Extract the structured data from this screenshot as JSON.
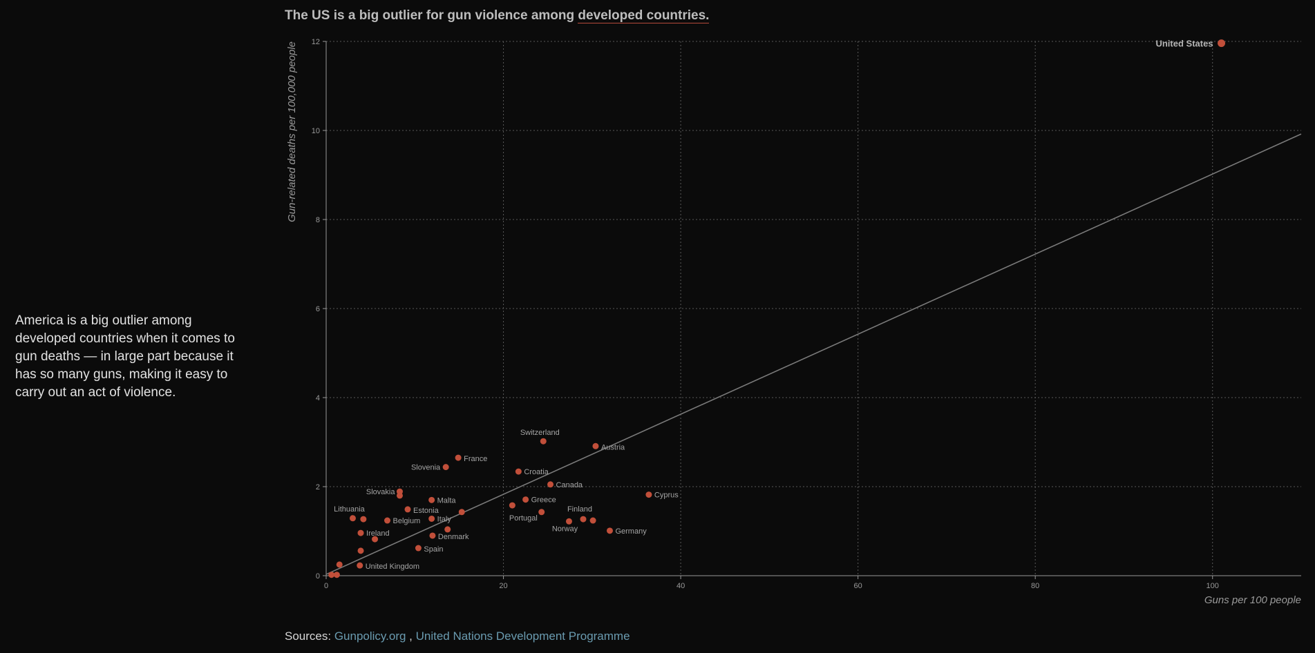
{
  "sidebar": {
    "text": "America is a big outlier among developed countries when it comes to gun deaths — in large part because it has so many guns, making it easy to carry out an act of violence."
  },
  "title": {
    "prefix": "The US is a big outlier for gun violence among ",
    "link": "developed countries."
  },
  "sources": {
    "label": "Sources: ",
    "link1": "Gunpolicy.org",
    "separator": " , ",
    "link2": "United Nations Development Programme"
  },
  "colors": {
    "background": "#0b0b0b",
    "point": "#c14f3a",
    "link": "#6a9bb0"
  },
  "chart_data": {
    "type": "scatter",
    "xlabel": "Guns per 100 people",
    "ylabel": "Gun-related deaths per 100,000 people",
    "xlim": [
      0,
      110
    ],
    "ylim": [
      0,
      12
    ],
    "xticks": [
      0,
      20,
      40,
      60,
      80,
      100
    ],
    "yticks": [
      0,
      2,
      4,
      6,
      8,
      10,
      12
    ],
    "grid": true,
    "trend_line": {
      "x": [
        0,
        110
      ],
      "y": [
        0.03,
        9.92
      ]
    },
    "points": [
      {
        "name": "United States",
        "x": 101,
        "y": 11.96,
        "label": "United States"
      },
      {
        "name": "Switzerland",
        "x": 24.5,
        "y": 3.02,
        "label": "Switzerland"
      },
      {
        "name": "Austria",
        "x": 30.4,
        "y": 2.91,
        "label": "Austria"
      },
      {
        "name": "France",
        "x": 14.9,
        "y": 2.65,
        "label": "France"
      },
      {
        "name": "Slovenia",
        "x": 13.5,
        "y": 2.44,
        "label": "Slovenia"
      },
      {
        "name": "Croatia",
        "x": 21.7,
        "y": 2.34,
        "label": "Croatia"
      },
      {
        "name": "Canada",
        "x": 25.3,
        "y": 2.05,
        "label": "Canada"
      },
      {
        "name": "Cyprus",
        "x": 36.4,
        "y": 1.82,
        "label": "Cyprus"
      },
      {
        "name": "Slovakia",
        "x": 8.3,
        "y": 1.89,
        "label": "Slovakia"
      },
      {
        "name": "",
        "x": 8.3,
        "y": 1.8,
        "label": ""
      },
      {
        "name": "Malta",
        "x": 11.9,
        "y": 1.7,
        "label": "Malta"
      },
      {
        "name": "Greece",
        "x": 22.5,
        "y": 1.71,
        "label": "Greece"
      },
      {
        "name": "Portugal",
        "x": 21.0,
        "y": 1.58,
        "label": "Portugal"
      },
      {
        "name": "Estonia",
        "x": 9.2,
        "y": 1.49,
        "label": "Estonia"
      },
      {
        "name": "",
        "x": 15.3,
        "y": 1.43,
        "label": ""
      },
      {
        "name": "",
        "x": 24.3,
        "y": 1.43,
        "label": ""
      },
      {
        "name": "Lithuania",
        "x": 3.0,
        "y": 1.29,
        "label": "Lithuania"
      },
      {
        "name": "",
        "x": 4.2,
        "y": 1.27,
        "label": ""
      },
      {
        "name": "Belgium",
        "x": 6.9,
        "y": 1.24,
        "label": "Belgium"
      },
      {
        "name": "Italy",
        "x": 11.9,
        "y": 1.28,
        "label": "Italy"
      },
      {
        "name": "Finland",
        "x": 29.0,
        "y": 1.27,
        "label": "Finland"
      },
      {
        "name": "",
        "x": 30.1,
        "y": 1.24,
        "label": ""
      },
      {
        "name": "Norway",
        "x": 27.4,
        "y": 1.22,
        "label": "Norway"
      },
      {
        "name": "",
        "x": 13.7,
        "y": 1.04,
        "label": ""
      },
      {
        "name": "Germany",
        "x": 32.0,
        "y": 1.01,
        "label": "Germany"
      },
      {
        "name": "Ireland",
        "x": 3.9,
        "y": 0.96,
        "label": "Ireland"
      },
      {
        "name": "Denmark",
        "x": 12.0,
        "y": 0.9,
        "label": "Denmark"
      },
      {
        "name": "",
        "x": 5.5,
        "y": 0.82,
        "label": ""
      },
      {
        "name": "Spain",
        "x": 10.4,
        "y": 0.62,
        "label": "Spain"
      },
      {
        "name": "",
        "x": 3.9,
        "y": 0.56,
        "label": ""
      },
      {
        "name": "",
        "x": 1.5,
        "y": 0.25,
        "label": ""
      },
      {
        "name": "United Kingdom",
        "x": 3.8,
        "y": 0.23,
        "label": "United Kingdom"
      },
      {
        "name": "",
        "x": 0.6,
        "y": 0.02,
        "label": ""
      },
      {
        "name": "",
        "x": 1.2,
        "y": 0.02,
        "label": ""
      }
    ]
  }
}
